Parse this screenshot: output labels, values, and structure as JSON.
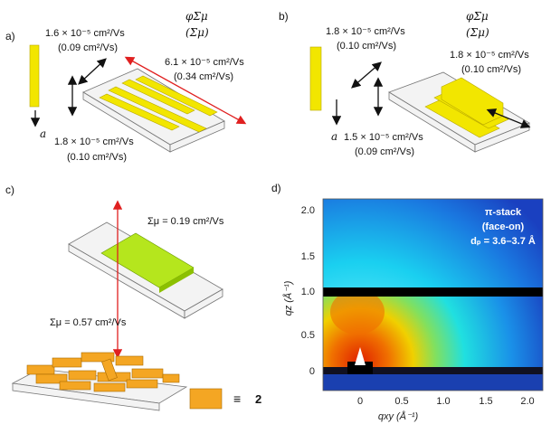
{
  "panel_a": {
    "label": "a)",
    "perp_value": "1.6 × 10⁻⁵ cm²/Vs",
    "perp_sum": "(0.09 cm²/Vs)",
    "header": "φΣμ",
    "header_sum": "(Σμ)",
    "long_value": "6.1 × 10⁻⁵ cm²/Vs",
    "long_sum": "(0.34 cm²/Vs)",
    "axis": "a",
    "vert_value": "1.8 × 10⁻⁵ cm²/Vs",
    "vert_sum": "(0.10 cm²/Vs)"
  },
  "panel_b": {
    "label": "b)",
    "perp_value": "1.8 × 10⁻⁵ cm²/Vs",
    "perp_sum": "(0.10 cm²/Vs)",
    "header": "φΣμ",
    "header_sum": "(Σμ)",
    "long_value": "1.8 × 10⁻⁵ cm²/Vs",
    "long_sum": "(0.10 cm²/Vs)",
    "axis": "a",
    "vert_value": "1.5 × 10⁻⁵ cm²/Vs",
    "vert_sum": "(0.09 cm²/Vs)"
  },
  "panel_c": {
    "label": "c)",
    "in_plane": "Σμ = 0.19 cm²/Vs",
    "out_of_plane": "Σμ = 0.57 cm²/Vs",
    "equiv": "≡",
    "compound": "2"
  },
  "panel_d": {
    "label": "d)",
    "y_label": "qz (Å⁻¹)",
    "x_label": "qxy (Å⁻¹)",
    "yticks": [
      "0",
      "0.5",
      "1.0",
      "1.5",
      "2.0"
    ],
    "xticks": [
      "0",
      "0.5",
      "1.0",
      "1.5",
      "2.0"
    ],
    "annotation": [
      "π-stack",
      "(face-on)",
      "dₚ = 3.6–3.7 Å"
    ]
  }
}
